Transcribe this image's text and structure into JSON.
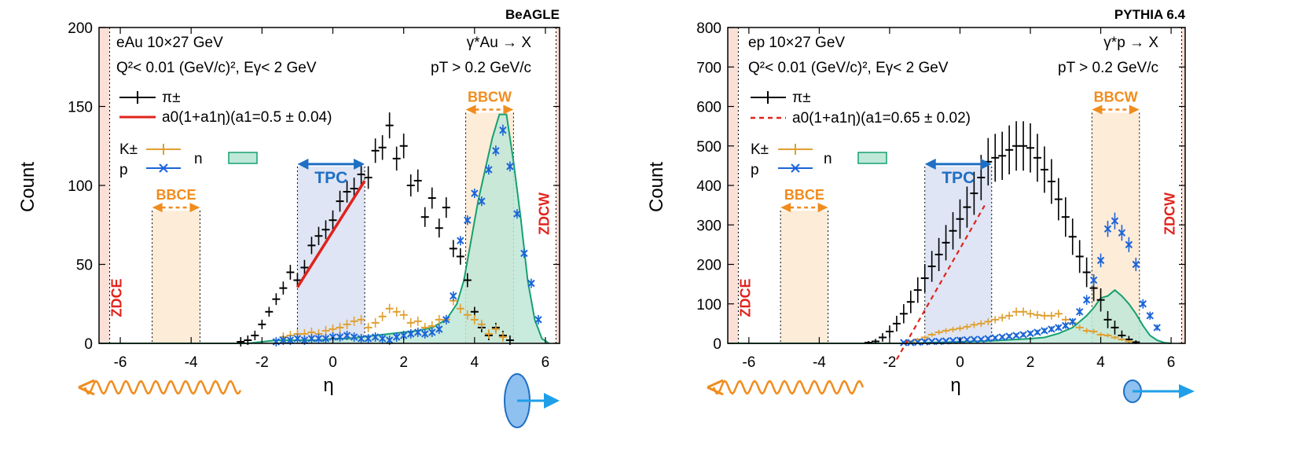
{
  "colors": {
    "pion": "#000000",
    "kaon": "#e0a030",
    "proton": "#1a64d8",
    "neutron_line": "#16a070",
    "neutron_fill": "#bfe8d8",
    "fit_beagle": "#e0231c",
    "fit_pythia": "#e0231c",
    "tpc": "#1f6fc4",
    "tpc_fill": "#dfe5f4",
    "bbc": "#f08c1e",
    "bbc_fill": "#fdecd8",
    "zdc": "#e0231c",
    "zdc_fill": "#fbe0d8"
  },
  "chart_data": [
    {
      "id": "beagle",
      "type": "scatter",
      "generator": "BeAGLE",
      "xlabel": "η",
      "ylabel": "Count",
      "xlim": [
        -6.6,
        6.4
      ],
      "ylim": [
        0,
        200
      ],
      "xticks": [
        -6,
        -4,
        -2,
        0,
        2,
        4,
        6
      ],
      "yticks": [
        0,
        50,
        100,
        150,
        200
      ],
      "annotations": {
        "system": "eAu 10×27 GeV",
        "cut": "Q²< 0.01 (GeV/c)², Eγ< 2 GeV",
        "process": "γ*Au → X",
        "pt_cut": "pT > 0.2 GeV/c"
      },
      "legend": {
        "pion": "π±",
        "fit": "a0(1+a1η)(a1=0.5 ± 0.04)",
        "kaon": "K±",
        "proton": "p",
        "neutron": "n"
      },
      "fit": {
        "a0": 71,
        "a1": 0.5,
        "x_range": [
          -1,
          0.9
        ],
        "dashed": false
      },
      "detectors": [
        {
          "label": "ZDCE",
          "range": [
            -6.3,
            -6.6
          ],
          "kind": "zdc"
        },
        {
          "label": "BBCE",
          "range": [
            -5.1,
            -3.75
          ],
          "kind": "bbc"
        },
        {
          "label": "TPC",
          "range": [
            -1,
            0.9
          ],
          "kind": "tpc"
        },
        {
          "label": "BBCW",
          "range": [
            3.75,
            5.1
          ],
          "kind": "bbc"
        },
        {
          "label": "ZDCW",
          "range": [
            6.3,
            6.4
          ],
          "kind": "zdc"
        }
      ],
      "series": [
        {
          "name": "π±",
          "key": "pion",
          "x": [
            -2.6,
            -2.4,
            -2.2,
            -2.0,
            -1.8,
            -1.6,
            -1.4,
            -1.2,
            -1.0,
            -0.8,
            -0.6,
            -0.4,
            -0.2,
            0.0,
            0.2,
            0.4,
            0.6,
            0.8,
            1.0,
            1.2,
            1.4,
            1.6,
            1.8,
            2.0,
            2.2,
            2.4,
            2.6,
            2.8,
            3.0,
            3.2,
            3.4,
            3.6,
            3.8,
            4.0,
            4.2,
            4.4,
            4.6,
            4.8,
            5.0
          ],
          "y": [
            1,
            2,
            5,
            12,
            20,
            28,
            35,
            45,
            40,
            48,
            62,
            68,
            72,
            78,
            90,
            96,
            98,
            107,
            105,
            122,
            124,
            138,
            117,
            125,
            100,
            103,
            80,
            92,
            73,
            86,
            60,
            55,
            40,
            20,
            10,
            5,
            10,
            5,
            2
          ]
        },
        {
          "name": "K±",
          "key": "kaon",
          "x": [
            -1.4,
            -1.2,
            -1.0,
            -0.8,
            -0.6,
            -0.4,
            -0.2,
            0.0,
            0.2,
            0.4,
            0.6,
            0.8,
            1.0,
            1.2,
            1.4,
            1.6,
            1.8,
            2.0,
            2.2,
            2.4,
            2.6,
            2.8,
            3.0,
            3.2,
            3.4,
            3.6,
            3.8,
            4.0,
            4.2,
            4.4,
            4.6,
            4.8
          ],
          "y": [
            4,
            5,
            6,
            6,
            7,
            6,
            8,
            9,
            10,
            12,
            14,
            15,
            10,
            13,
            17,
            22,
            20,
            18,
            13,
            14,
            10,
            11,
            15,
            15,
            27,
            22,
            18,
            15,
            12,
            6,
            9,
            4
          ]
        },
        {
          "name": "p",
          "key": "proton",
          "x": [
            -1.6,
            -1.4,
            -1.2,
            -1.0,
            -0.8,
            -0.6,
            -0.4,
            -0.2,
            0.0,
            0.2,
            0.4,
            0.6,
            0.8,
            1.0,
            1.2,
            1.4,
            1.6,
            1.8,
            2.0,
            2.2,
            2.4,
            2.6,
            2.8,
            3.0,
            3.2,
            3.4,
            3.6,
            3.8,
            4.0,
            4.2,
            4.4,
            4.6,
            4.8,
            5.0,
            5.2,
            5.4,
            5.6,
            5.8
          ],
          "y": [
            1,
            2,
            2,
            3,
            2,
            3,
            3,
            3,
            4,
            4,
            5,
            4,
            3,
            3,
            4,
            3,
            2,
            4,
            5,
            6,
            7,
            6,
            7,
            9,
            15,
            30,
            65,
            78,
            95,
            90,
            110,
            122,
            135,
            112,
            82,
            57,
            38,
            15
          ]
        }
      ],
      "neutron": {
        "x": [
          -6.6,
          -2.8,
          -2.4,
          -2.0,
          -1.6,
          -1.2,
          -0.8,
          -0.4,
          0.0,
          0.4,
          0.8,
          1.2,
          1.6,
          2.0,
          2.4,
          2.8,
          3.2,
          3.5,
          3.7,
          3.9,
          4.1,
          4.3,
          4.5,
          4.7,
          4.9,
          5.1,
          5.3,
          5.5,
          5.7,
          5.9,
          6.1
        ],
        "y": [
          0,
          0,
          0,
          1,
          2,
          2,
          2,
          2,
          3,
          3,
          4,
          5,
          6,
          7,
          8,
          10,
          15,
          25,
          40,
          65,
          90,
          110,
          130,
          145,
          145,
          115,
          80,
          40,
          15,
          3,
          0
        ]
      }
    },
    {
      "id": "pythia",
      "type": "scatter",
      "generator": "PYTHIA 6.4",
      "xlabel": "η",
      "ylabel": "Count",
      "xlim": [
        -6.6,
        6.4
      ],
      "ylim": [
        0,
        800
      ],
      "xticks": [
        -6,
        -4,
        -2,
        0,
        2,
        4,
        6
      ],
      "yticks": [
        0,
        100,
        200,
        300,
        400,
        500,
        600,
        700,
        800
      ],
      "annotations": {
        "system": "ep 10×27 GeV",
        "cut": "Q²< 0.01 (GeV/c)², Eγ< 2 GeV",
        "process": "γ*p → X",
        "pt_cut": "pT > 0.2 GeV/c"
      },
      "legend": {
        "pion": "π±",
        "fit": "a0(1+a1η)(a1=0.65 ± 0.02)",
        "kaon": "K±",
        "proton": "p",
        "neutron": "n"
      },
      "fit": {
        "a0": 240,
        "a1": 0.65,
        "x_range": [
          -1.8,
          0.7
        ],
        "dashed": true
      },
      "detectors": [
        {
          "label": "ZDCE",
          "range": [
            -6.3,
            -6.6
          ],
          "kind": "zdc"
        },
        {
          "label": "BBCE",
          "range": [
            -5.1,
            -3.75
          ],
          "kind": "bbc"
        },
        {
          "label": "TPC",
          "range": [
            -1,
            0.9
          ],
          "kind": "tpc"
        },
        {
          "label": "BBCW",
          "range": [
            3.75,
            5.1
          ],
          "kind": "bbc"
        },
        {
          "label": "ZDCW",
          "range": [
            6.3,
            6.4
          ],
          "kind": "zdc"
        }
      ],
      "series": [
        {
          "name": "π±",
          "key": "pion",
          "x": [
            -2.6,
            -2.4,
            -2.2,
            -2.0,
            -1.8,
            -1.6,
            -1.4,
            -1.2,
            -1.0,
            -0.8,
            -0.6,
            -0.4,
            -0.2,
            0.0,
            0.2,
            0.4,
            0.6,
            0.8,
            1.0,
            1.2,
            1.4,
            1.6,
            1.8,
            2.0,
            2.2,
            2.4,
            2.6,
            2.8,
            3.0,
            3.2,
            3.4,
            3.6,
            3.8,
            4.0,
            4.2,
            4.4,
            4.6,
            4.8,
            5.0
          ],
          "y": [
            2,
            5,
            15,
            30,
            50,
            75,
            105,
            135,
            165,
            195,
            225,
            255,
            285,
            315,
            345,
            380,
            420,
            460,
            470,
            475,
            490,
            500,
            500,
            495,
            470,
            440,
            410,
            365,
            320,
            270,
            220,
            180,
            140,
            110,
            60,
            40,
            20,
            10,
            3
          ]
        },
        {
          "name": "K±",
          "key": "kaon",
          "x": [
            -1.4,
            -1.2,
            -1.0,
            -0.8,
            -0.6,
            -0.4,
            -0.2,
            0.0,
            0.2,
            0.4,
            0.6,
            0.8,
            1.0,
            1.2,
            1.4,
            1.6,
            1.8,
            2.0,
            2.2,
            2.4,
            2.6,
            2.8,
            3.0,
            3.2,
            3.4,
            3.6,
            3.8,
            4.0,
            4.2,
            4.4,
            4.6,
            4.8
          ],
          "y": [
            5,
            10,
            15,
            22,
            28,
            32,
            35,
            38,
            42,
            47,
            50,
            55,
            60,
            65,
            70,
            80,
            80,
            75,
            72,
            70,
            70,
            75,
            60,
            52,
            40,
            32,
            30,
            22,
            20,
            15,
            10,
            5
          ]
        },
        {
          "name": "p",
          "key": "proton",
          "x": [
            -1.6,
            -1.4,
            -1.2,
            -1.0,
            -0.8,
            -0.6,
            -0.4,
            -0.2,
            0.0,
            0.2,
            0.4,
            0.6,
            0.8,
            1.0,
            1.2,
            1.4,
            1.6,
            1.8,
            2.0,
            2.2,
            2.4,
            2.6,
            2.8,
            3.0,
            3.2,
            3.4,
            3.6,
            3.8,
            4.0,
            4.2,
            4.4,
            4.6,
            4.8,
            5.0,
            5.2,
            5.4,
            5.6
          ],
          "y": [
            2,
            2,
            3,
            4,
            5,
            5,
            6,
            7,
            8,
            9,
            10,
            10,
            12,
            14,
            16,
            18,
            20,
            22,
            25,
            28,
            32,
            36,
            40,
            45,
            55,
            80,
            110,
            160,
            210,
            290,
            310,
            280,
            250,
            200,
            100,
            70,
            40
          ]
        }
      ],
      "neutron": {
        "x": [
          -6.6,
          -2.8,
          -2.4,
          -2.0,
          -1.6,
          -1.2,
          -0.8,
          -0.4,
          0.0,
          0.4,
          0.8,
          1.2,
          1.6,
          2.0,
          2.4,
          2.8,
          3.2,
          3.4,
          3.6,
          3.8,
          4.0,
          4.2,
          4.4,
          4.6,
          4.8,
          5.0,
          5.2,
          5.4,
          5.6,
          5.8,
          6.0
        ],
        "y": [
          0,
          0,
          0,
          0,
          0,
          1,
          2,
          3,
          4,
          5,
          6,
          8,
          10,
          12,
          15,
          25,
          40,
          55,
          70,
          90,
          115,
          120,
          135,
          120,
          100,
          75,
          45,
          20,
          8,
          2,
          0
        ]
      }
    }
  ]
}
